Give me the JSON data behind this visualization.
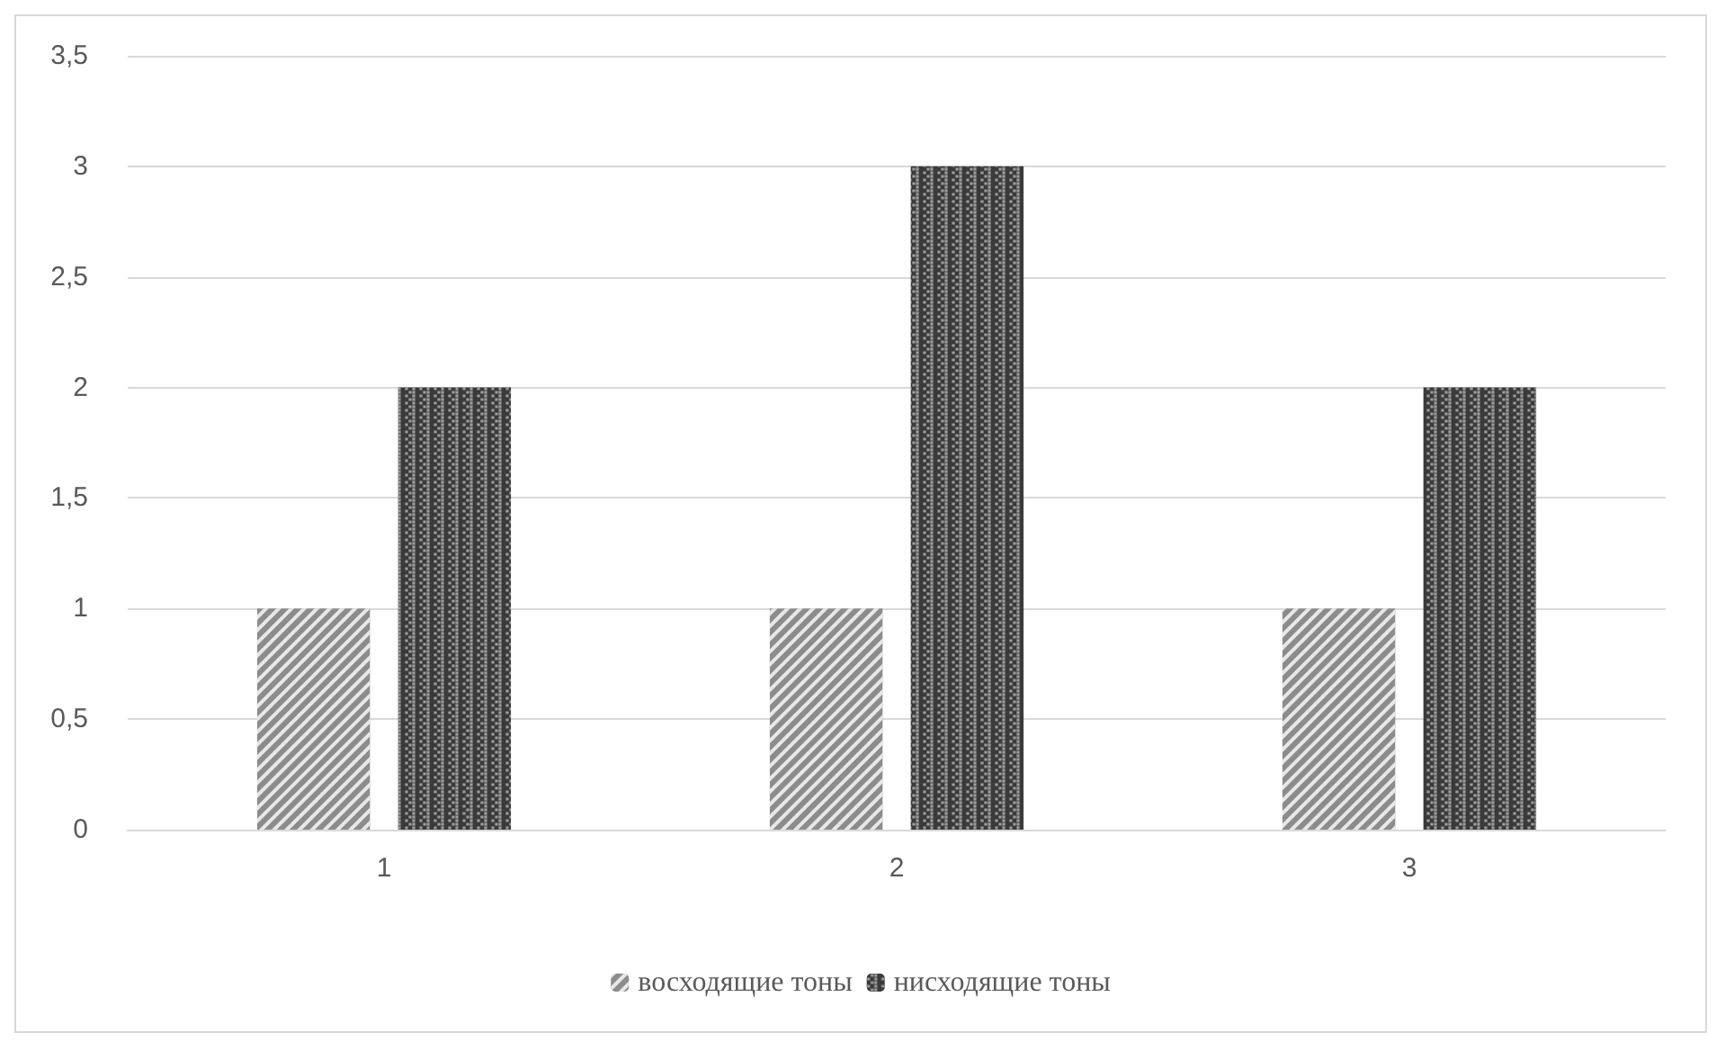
{
  "chart_data": {
    "type": "bar",
    "categories": [
      "1",
      "2",
      "3"
    ],
    "series": [
      {
        "name": "восходящие тоны",
        "color": "#8c8c8c",
        "values": [
          1,
          1,
          1
        ]
      },
      {
        "name": "нисходящие тоны",
        "color": "#3a3a3a",
        "values": [
          2,
          3,
          2
        ]
      }
    ],
    "ylim": [
      0,
      3.5
    ],
    "yticks": [
      0,
      {
        "value": 0.5,
        "label": "0,5"
      },
      1,
      {
        "value": 1.5,
        "label": "1,5"
      },
      2,
      {
        "value": 2.5,
        "label": "2,5"
      },
      3,
      {
        "value": 3.5,
        "label": "3,5"
      }
    ],
    "grid": "y",
    "legend": "bottom"
  }
}
